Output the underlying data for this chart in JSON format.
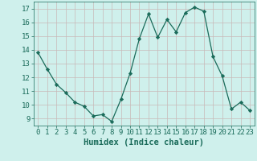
{
  "x": [
    0,
    1,
    2,
    3,
    4,
    5,
    6,
    7,
    8,
    9,
    10,
    11,
    12,
    13,
    14,
    15,
    16,
    17,
    18,
    19,
    20,
    21,
    22,
    23
  ],
  "y": [
    13.8,
    12.6,
    11.5,
    10.9,
    10.2,
    9.9,
    9.2,
    9.3,
    8.8,
    10.4,
    12.3,
    14.8,
    16.6,
    14.9,
    16.2,
    15.3,
    16.7,
    17.1,
    16.8,
    13.5,
    12.1,
    9.7,
    10.2,
    9.6
  ],
  "xlim": [
    -0.5,
    23.5
  ],
  "ylim": [
    8.5,
    17.5
  ],
  "yticks": [
    9,
    10,
    11,
    12,
    13,
    14,
    15,
    16,
    17
  ],
  "xticks": [
    0,
    1,
    2,
    3,
    4,
    5,
    6,
    7,
    8,
    9,
    10,
    11,
    12,
    13,
    14,
    15,
    16,
    17,
    18,
    19,
    20,
    21,
    22,
    23
  ],
  "xlabel": "Humidex (Indice chaleur)",
  "line_color": "#1a6b5a",
  "marker_color": "#1a6b5a",
  "bg_color": "#cff0ec",
  "grid_color": "#c8b8b8",
  "text_color": "#1a6b5a",
  "xlabel_fontsize": 7.5,
  "tick_fontsize": 6.5
}
